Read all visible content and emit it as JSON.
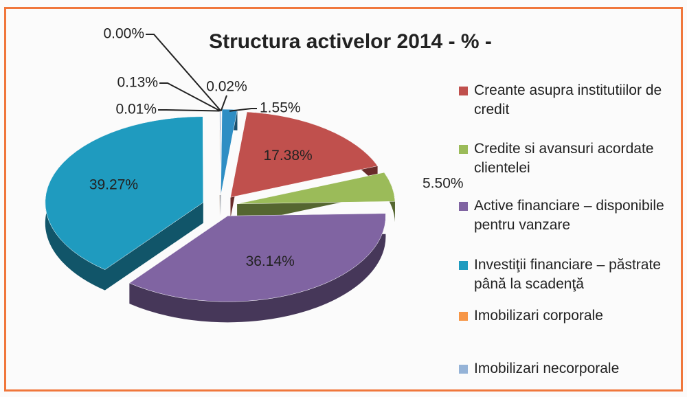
{
  "chart_data": {
    "type": "pie3d",
    "title": "Structura activelor  2014  - % -",
    "categories": [
      "Creante asupra institutiilor de credit",
      "Credite si avansuri acordate clientelei",
      "Active financiare – disponibile pentru vanzare",
      "Investiţii financiare – păstrate până la scadenţă",
      "Imobilizari corporale",
      "Imobilizari necorporale",
      null,
      null,
      null
    ],
    "values": [
      17.38,
      5.5,
      36.14,
      39.27,
      0.01,
      0.13,
      0.0,
      0.02,
      1.55
    ],
    "value_labels": [
      "17.38%",
      "5.50%",
      "36.14%",
      "39.27%",
      "0.01%",
      "0.13%",
      "0.00%",
      "0.02%",
      "1.55%"
    ],
    "colors": [
      "#c0504d",
      "#9bbb59",
      "#8064a2",
      "#1f9bbf",
      "#f79646",
      "#95b3d7",
      "#c6d9f1",
      "#d99694",
      "#2e8ec4"
    ],
    "legend": "right"
  }
}
